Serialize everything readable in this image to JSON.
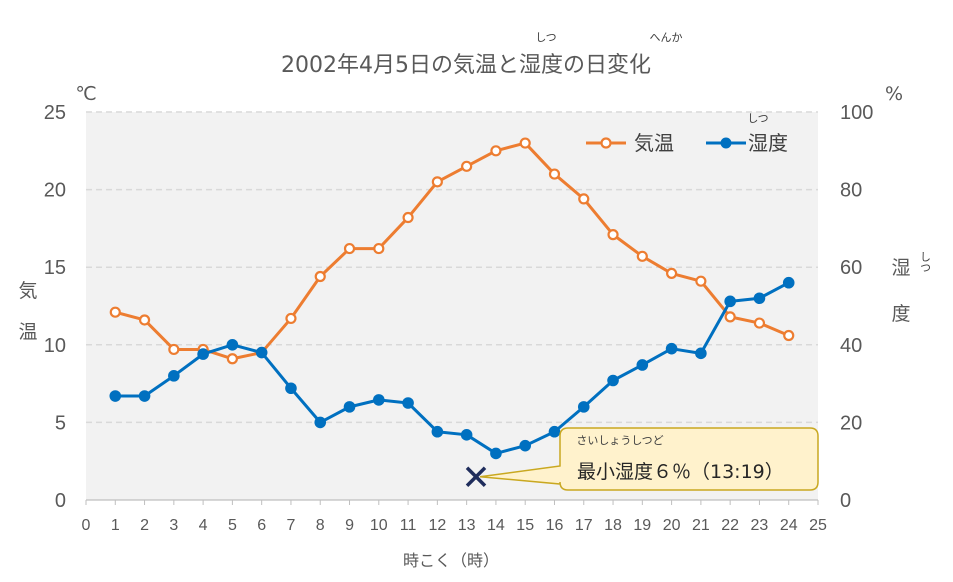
{
  "chart_data": {
    "type": "line",
    "title": "2002年4月5日の気温と湿度の日変化",
    "title_ruby": {
      "shitsu": "しつ",
      "henka": "へんか"
    },
    "x": [
      1,
      2,
      3,
      4,
      5,
      6,
      7,
      8,
      9,
      10,
      11,
      12,
      13,
      14,
      15,
      16,
      17,
      18,
      19,
      20,
      21,
      22,
      23,
      24
    ],
    "xlabel": "時こく（時）",
    "xlim": [
      0,
      25
    ],
    "x_ticks": [
      "0",
      "1",
      "2",
      "3",
      "4",
      "5",
      "6",
      "7",
      "8",
      "9",
      "10",
      "11",
      "12",
      "13",
      "14",
      "15",
      "16",
      "17",
      "18",
      "19",
      "20",
      "21",
      "22",
      "23",
      "24",
      "25"
    ],
    "left_axis": {
      "unit": "℃",
      "label_chars": [
        "気",
        "温"
      ],
      "ylim": [
        0,
        25
      ],
      "ticks": [
        "0",
        "5",
        "10",
        "15",
        "20",
        "25"
      ]
    },
    "right_axis": {
      "unit": "%",
      "label_chars": [
        "湿",
        "度"
      ],
      "label_ruby": "しつ",
      "ylim": [
        0,
        100
      ],
      "ticks": [
        "0",
        "20",
        "40",
        "60",
        "80",
        "100"
      ]
    },
    "grid": true,
    "legend_position": "top-right",
    "series": [
      {
        "name": "気温",
        "axis": "left",
        "color": "#ED7D31",
        "marker": "hollow-circle",
        "values": [
          12.1,
          11.6,
          9.7,
          9.7,
          9.1,
          9.5,
          11.7,
          14.4,
          16.2,
          16.2,
          18.2,
          20.5,
          21.5,
          22.5,
          23.0,
          21.0,
          19.4,
          17.1,
          15.7,
          14.6,
          14.1,
          11.8,
          11.4,
          10.6
        ]
      },
      {
        "name": "湿度",
        "name_ruby": "しつ",
        "axis": "right",
        "color": "#0070C0",
        "marker": "filled-circle",
        "values": [
          26.8,
          26.8,
          32.0,
          37.6,
          40.0,
          38.0,
          28.8,
          20.0,
          24.0,
          25.8,
          25.0,
          17.6,
          16.8,
          12.0,
          14.0,
          17.6,
          24.0,
          30.8,
          34.8,
          39.0,
          37.8,
          51.2,
          52.0,
          56.0
        ]
      }
    ],
    "annotation": {
      "text": "最小湿度６％（13:19）",
      "ruby": "さいしょうしつど",
      "x": 13.32,
      "y": 6,
      "axis": "right",
      "marker": "x",
      "marker_color": "#1F2D5C",
      "box_fill": "#FFF2CC",
      "box_stroke": "#C9A820"
    },
    "colors": {
      "plot_background": "#F2F2F2",
      "grid": "#D9D9D9",
      "text": "#595959"
    }
  }
}
